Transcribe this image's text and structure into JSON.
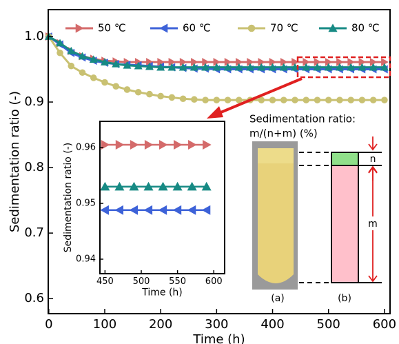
{
  "chart_data": [
    {
      "type": "line",
      "xlabel": "Time (h)",
      "ylabel": "Sedimentation ratio (-)",
      "x": [
        0,
        20,
        40,
        60,
        80,
        100,
        120,
        140,
        160,
        180,
        200,
        220,
        240,
        260,
        280,
        300,
        320,
        340,
        360,
        380,
        400,
        420,
        440,
        460,
        480,
        500,
        520,
        540,
        560,
        580,
        600
      ],
      "xlim": [
        -1,
        610
      ],
      "xticks": [
        0,
        100,
        200,
        300,
        400,
        500,
        600
      ],
      "ylim": [
        0.577,
        1.041
      ],
      "yticks": [
        0.6,
        0.7,
        0.8,
        0.9,
        {
          "value": 1,
          "label": "1.0"
        }
      ],
      "legend": "top",
      "series": [
        {
          "name": "50 ℃",
          "color": "#d46a6a",
          "marker": "triangle-right",
          "values": [
            1.0,
            0.99,
            0.978,
            0.97,
            0.966,
            0.963,
            0.962,
            0.961,
            0.961,
            0.961,
            0.961,
            0.961,
            0.961,
            0.961,
            0.961,
            0.961,
            0.961,
            0.961,
            0.961,
            0.961,
            0.961,
            0.961,
            0.961,
            0.961,
            0.961,
            0.961,
            0.961,
            0.961,
            0.961,
            0.961,
            0.961
          ]
        },
        {
          "name": "60 ℃",
          "color": "#3d62d8",
          "marker": "triangle-left",
          "values": [
            1.0,
            0.988,
            0.975,
            0.968,
            0.963,
            0.96,
            0.958,
            0.957,
            0.956,
            0.955,
            0.954,
            0.953,
            0.952,
            0.951,
            0.951,
            0.95,
            0.95,
            0.95,
            0.95,
            0.95,
            0.95,
            0.95,
            0.95,
            0.95,
            0.95,
            0.95,
            0.95,
            0.95,
            0.95,
            0.95,
            0.95
          ]
        },
        {
          "name": "70 ℃",
          "color": "#c9c172",
          "marker": "circle",
          "values": [
            1.0,
            0.975,
            0.955,
            0.945,
            0.937,
            0.93,
            0.924,
            0.919,
            0.915,
            0.912,
            0.909,
            0.907,
            0.905,
            0.904,
            0.903,
            0.903,
            0.903,
            0.903,
            0.903,
            0.903,
            0.903,
            0.903,
            0.903,
            0.903,
            0.903,
            0.903,
            0.903,
            0.903,
            0.903,
            0.903,
            0.903
          ]
        },
        {
          "name": "80 ℃",
          "color": "#178a84",
          "marker": "triangle-up",
          "values": [
            1.0,
            0.99,
            0.978,
            0.97,
            0.965,
            0.961,
            0.958,
            0.956,
            0.955,
            0.954,
            0.953,
            0.953,
            0.953,
            0.953,
            0.953,
            0.953,
            0.953,
            0.953,
            0.953,
            0.953,
            0.953,
            0.953,
            0.953,
            0.953,
            0.953,
            0.953,
            0.953,
            0.953,
            0.953,
            0.953,
            0.953
          ]
        }
      ],
      "annotations": [
        "Sedimentation ratio:",
        "m/(n+m) (%)",
        "n",
        "m",
        "(a)",
        "(b)"
      ]
    },
    {
      "type": "line",
      "xlabel": "Time (h)",
      "ylabel": "Sedimentation ratio (-)",
      "x": [
        450,
        470,
        490,
        510,
        530,
        550,
        570,
        590
      ],
      "xlim": [
        443,
        615
      ],
      "xticks": [
        450,
        500,
        550,
        600
      ],
      "ylim": [
        0.9374,
        0.9647
      ],
      "yticks": [
        0.94,
        0.95,
        0.96
      ],
      "series": [
        {
          "color": "#d46a6a",
          "marker": "triangle-right",
          "values": [
            0.9605,
            0.9605,
            0.9605,
            0.9605,
            0.9605,
            0.9605,
            0.9605,
            0.9605
          ]
        },
        {
          "color": "#3d62d8",
          "marker": "triangle-left",
          "values": [
            0.9488,
            0.9488,
            0.9488,
            0.9488,
            0.9488,
            0.9488,
            0.9488,
            0.9488
          ]
        },
        {
          "color": "#178a84",
          "marker": "triangle-up",
          "values": [
            0.953,
            0.953,
            0.953,
            0.953,
            0.953,
            0.953,
            0.953,
            0.953
          ]
        }
      ]
    }
  ]
}
